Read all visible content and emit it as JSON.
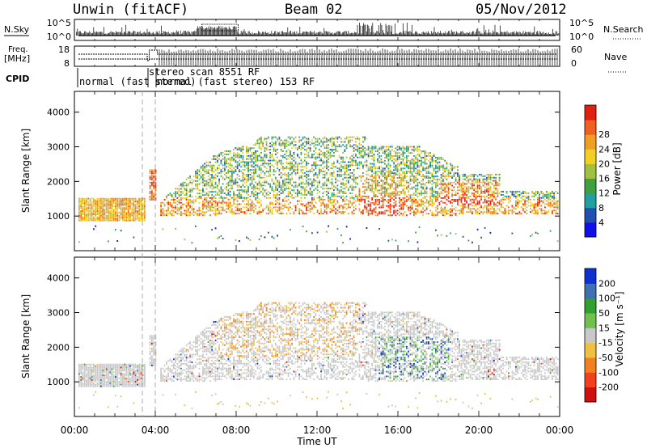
{
  "header": {
    "station": "Unwin (fitACF)",
    "beam": "Beam 02",
    "date": "05/Nov/2012"
  },
  "side_labels": {
    "nsky": "N.Sky",
    "nsearch": "N.Search",
    "freq_line1": "Freq.",
    "freq_line2": "[MHz]",
    "nave": "Nave",
    "cpid": "CPID"
  },
  "cpid_labels": {
    "first": "normal (fast stereo)",
    "second": "stereo scan 8551 RF",
    "third": "normal (fast stereo) 153 RF"
  },
  "colors": {
    "power": [
      "#1010e8",
      "#2050b0",
      "#20a0a0",
      "#40a040",
      "#a0c040",
      "#f0d020",
      "#f0a020",
      "#f06020",
      "#e02010"
    ],
    "velocity": [
      "#d01010",
      "#f04020",
      "#f08020",
      "#f0c040",
      "#c8c8c8",
      "#70c050",
      "#30a030",
      "#4070b0",
      "#1030d0"
    ]
  },
  "chart_data": [
    {
      "type": "line",
      "name": "sky-noise-panel",
      "ylabel_left": "N.Sky",
      "ylabel_right": "N.Search",
      "yticks_left": [
        "10^5",
        "10^0"
      ],
      "yticks_right": [
        "10^5",
        "10^0"
      ],
      "xlim": [
        0,
        24
      ]
    },
    {
      "type": "line",
      "name": "frequency-nave-panel",
      "ylabel_left": "Freq. [MHz]",
      "ylabel_right": "Nave",
      "yticks_left": [
        "18",
        "8"
      ],
      "yticks_right": [
        "60",
        "0"
      ],
      "xlim": [
        0,
        24
      ]
    },
    {
      "type": "heatmap",
      "name": "power-panel",
      "ylabel": "Slant Range [km]",
      "xlim": [
        0,
        24
      ],
      "ylim": [
        0,
        4600
      ],
      "yticks": [
        "1000",
        "2000",
        "3000",
        "4000"
      ],
      "colorbar_label": "Power [dB]",
      "colorbar_ticks": [
        "4",
        "8",
        "12",
        "16",
        "20",
        "24",
        "28"
      ]
    },
    {
      "type": "heatmap",
      "name": "velocity-panel",
      "ylabel": "Slant Range [km]",
      "xlim": [
        0,
        24
      ],
      "ylim": [
        0,
        4600
      ],
      "yticks": [
        "1000",
        "2000",
        "3000",
        "4000"
      ],
      "colorbar_label": "Velocity [m s⁻¹]",
      "colorbar_ticks": [
        "-200",
        "-100",
        "-50",
        "-15",
        "15",
        "50",
        "100",
        "200"
      ]
    }
  ],
  "x_axis": {
    "label": "Time UT",
    "ticks": [
      "00:00",
      "04:00",
      "08:00",
      "12:00",
      "16:00",
      "20:00",
      "00:00"
    ]
  }
}
